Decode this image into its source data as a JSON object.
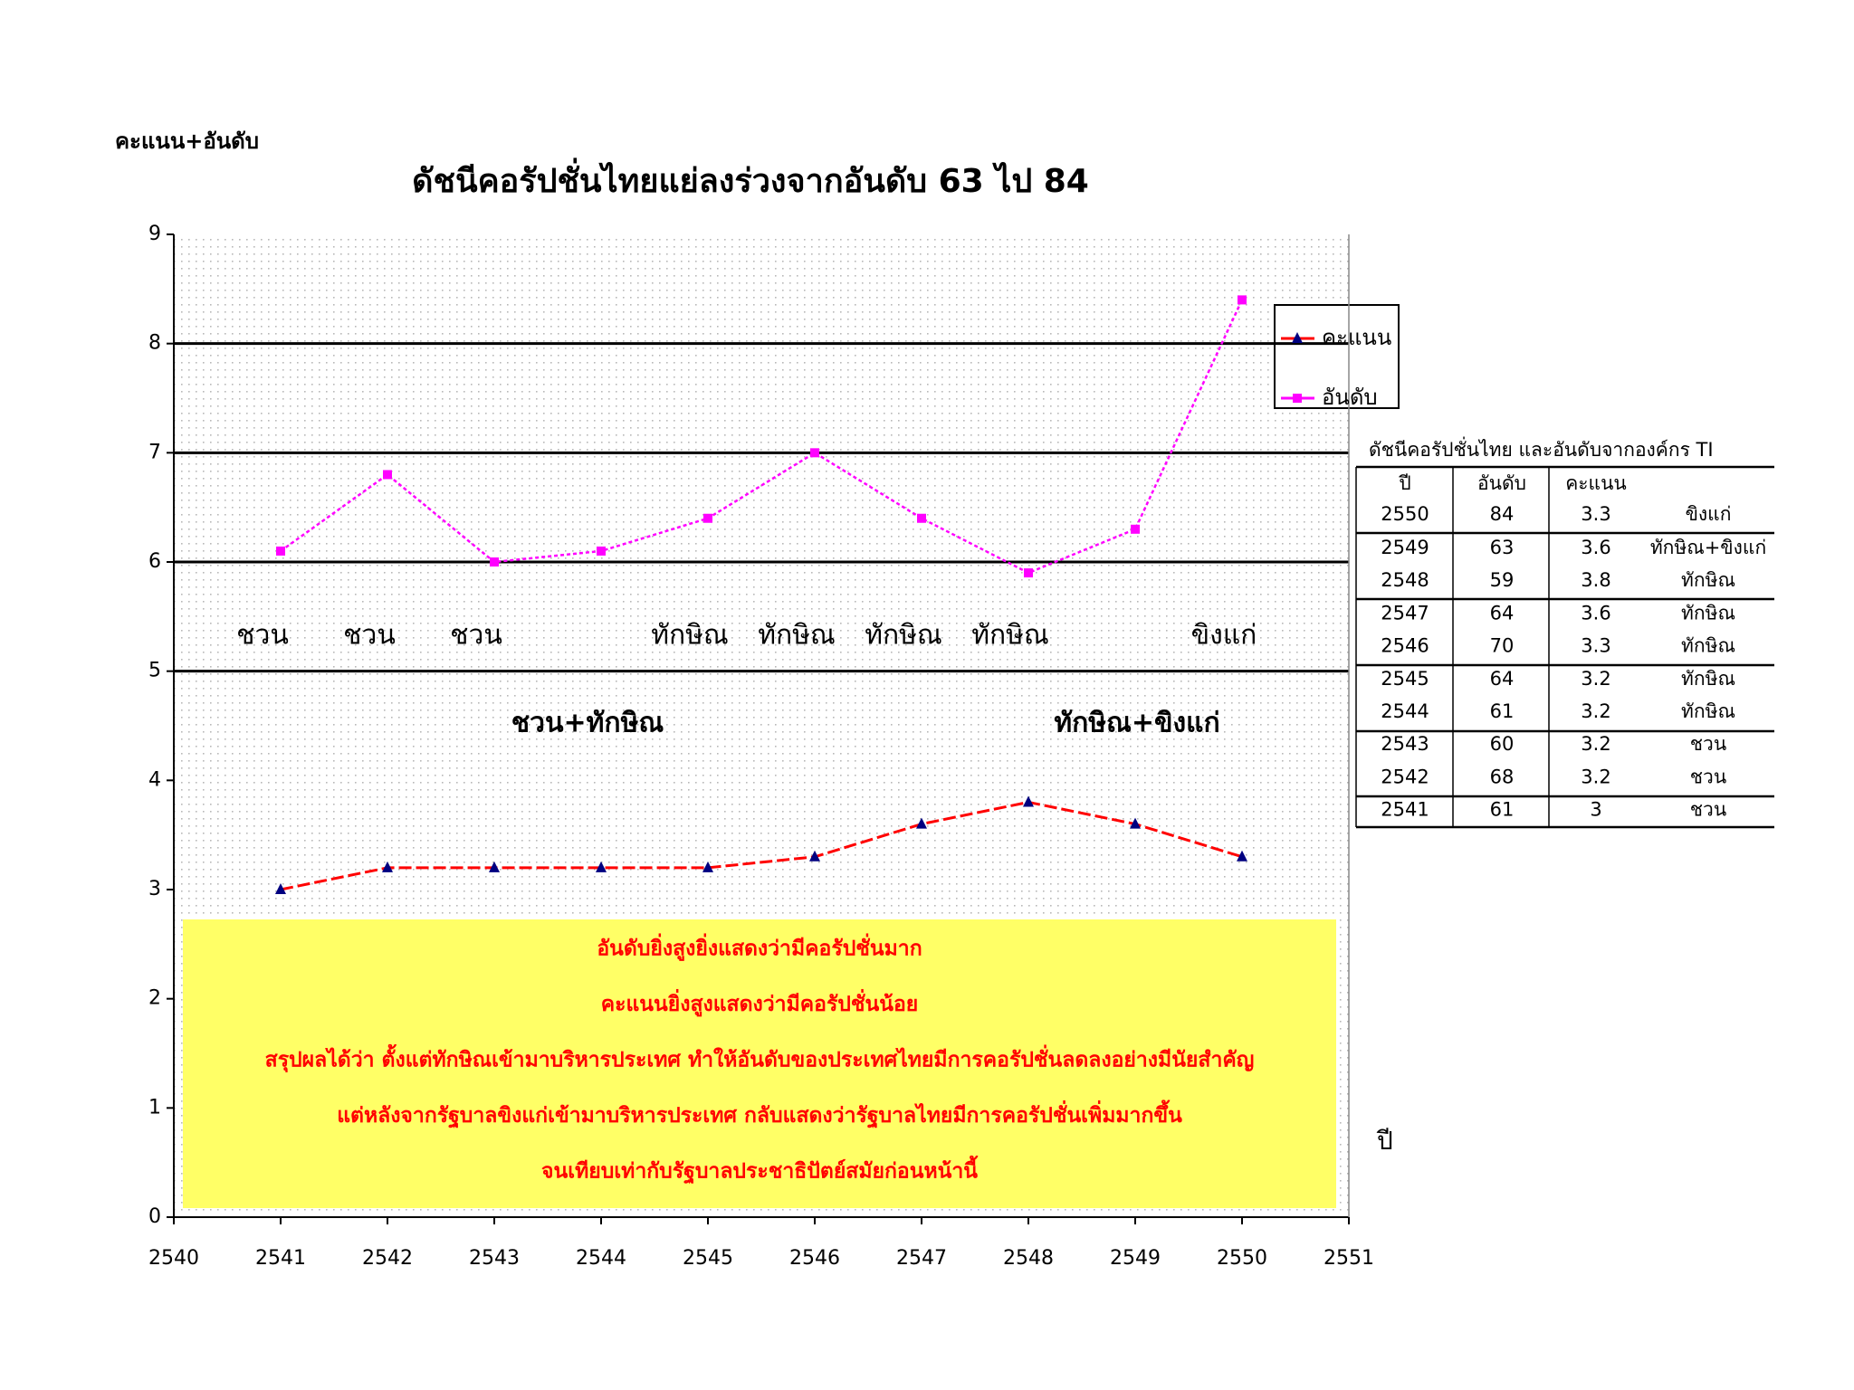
{
  "chart_data": {
    "type": "line",
    "title": "ดัชนีคอรัปชั่นไทยแย่ลงร่วงจากอันดับ 63 ไป 84",
    "y_label": "คะแนน+อันดับ",
    "x_label": "ปี",
    "x": [
      2541,
      2542,
      2543,
      2544,
      2545,
      2546,
      2547,
      2548,
      2549,
      2550
    ],
    "series": [
      {
        "name": "คะแนน",
        "color": "#ff0000",
        "marker_color": "#000080",
        "marker": "triangle",
        "dash": "dashed",
        "values": [
          3.0,
          3.2,
          3.2,
          3.2,
          3.2,
          3.3,
          3.6,
          3.8,
          3.6,
          3.3
        ]
      },
      {
        "name": "อันดับ",
        "color": "#ff00ff",
        "marker_color": "#ff00ff",
        "marker": "square",
        "dash": "dotted",
        "values": [
          6.1,
          6.8,
          6.0,
          6.1,
          6.4,
          7.0,
          6.4,
          5.9,
          6.3,
          8.4
        ]
      }
    ],
    "xlim": [
      2540,
      2551
    ],
    "xticks": [
      2540,
      2541,
      2542,
      2543,
      2544,
      2545,
      2546,
      2547,
      2548,
      2549,
      2550,
      2551
    ],
    "ylim": [
      0,
      9
    ],
    "yticks": [
      0,
      1,
      2,
      3,
      4,
      5,
      6,
      7,
      8,
      9
    ],
    "ref_lines": [
      5,
      6,
      7,
      8
    ],
    "era_labels": [
      "ชวน",
      "ชวน",
      "ชวน",
      null,
      "ทักษิณ",
      "ทักษิณ",
      "ทักษิณ",
      "ทักษิณ",
      null,
      "ขิงแก่"
    ],
    "period_labels": [
      "ชวน+ทักษิณ",
      "ทักษิณ+ขิงแก่"
    ],
    "note_lines": [
      "อันดับยิ่งสูงยิ่งแสดงว่ามีคอรัปชั่นมาก",
      "คะแนนยิ่งสูงแสดงว่ามีคอรัปชั่นน้อย",
      "สรุปผลได้ว่า ตั้งแต่ทักษิณเข้ามาบริหารประเทศ ทำให้อันดับของประเทศไทยมีการคอรัปชั่นลดลงอย่างมีนัยสำคัญ",
      "แต่หลังจากรัฐบาลขิงแก่เข้ามาบริหารประเทศ กลับแสดงว่ารัฐบาลไทยมีการคอรัปชั่นเพิ่มมากขึ้น",
      "จนเทียบเท่ากับรัฐบาลประชาธิปัตย์สมัยก่อนหน้านี้"
    ],
    "legend": "right"
  },
  "table": {
    "title": "ดัชนีคอรัปชั่นไทย และอันดับจากองค์กร TI",
    "columns": [
      "ปี",
      "อันดับ",
      "คะแนน"
    ],
    "rows": [
      [
        2550,
        84,
        3.3,
        "ขิงแก่"
      ],
      [
        2549,
        63,
        3.6,
        "ทักษิณ+ขิงแก่"
      ],
      [
        2548,
        59,
        3.8,
        "ทักษิณ"
      ],
      [
        2547,
        64,
        3.6,
        "ทักษิณ"
      ],
      [
        2546,
        70,
        3.3,
        "ทักษิณ"
      ],
      [
        2545,
        64,
        3.2,
        "ทักษิณ"
      ],
      [
        2544,
        61,
        3.2,
        "ทักษิณ"
      ],
      [
        2543,
        60,
        3.2,
        "ชวน"
      ],
      [
        2542,
        68,
        3.2,
        "ชวน"
      ],
      [
        2541,
        61,
        3,
        "ชวน"
      ]
    ]
  }
}
